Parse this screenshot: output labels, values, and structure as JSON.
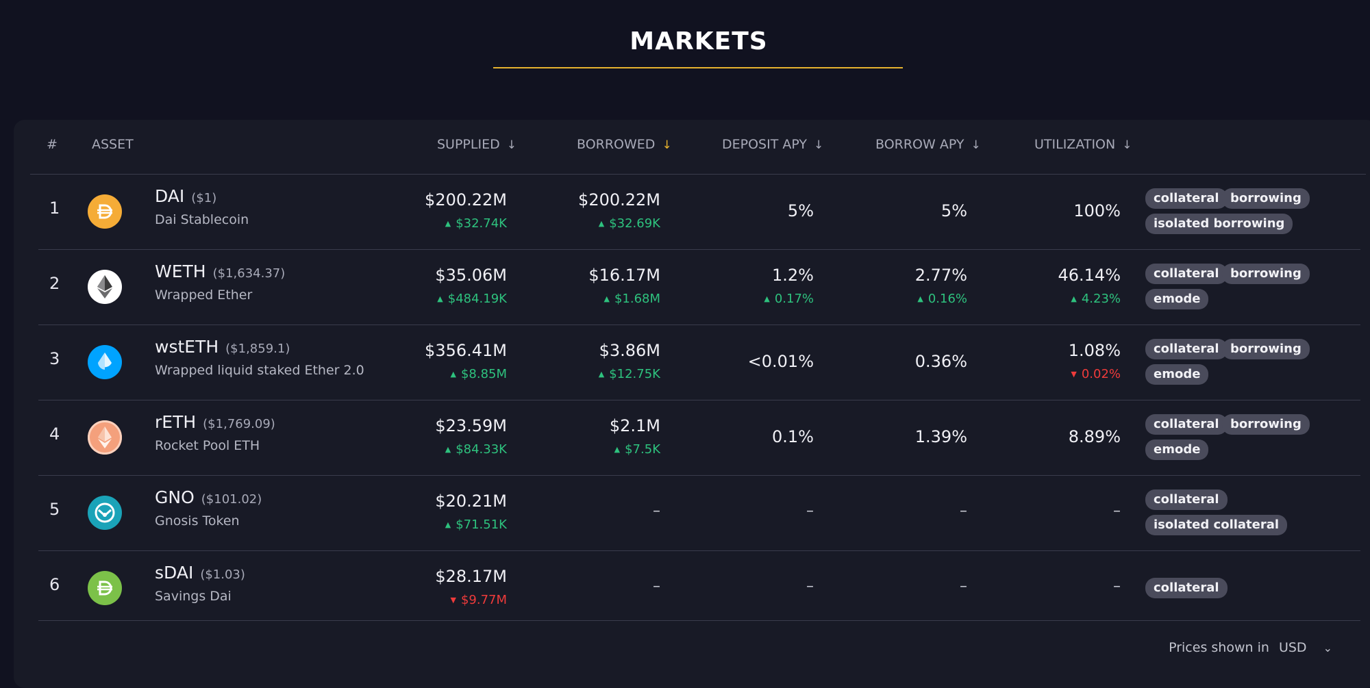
{
  "page_title": "MARKETS",
  "colors": {
    "accent": "#e7b32f",
    "up": "#2ec27e",
    "down": "#ef3b3b",
    "tag_bg": "#4a4b5b"
  },
  "columns": {
    "rank": "#",
    "asset": "ASSET",
    "supplied": "SUPPLIED",
    "borrowed": "BORROWED",
    "deposit_apy": "DEPOSIT APY",
    "borrow_apy": "BORROW APY",
    "utilization": "UTILIZATION",
    "sort_icon": "arrow-down-icon",
    "active_sort": "borrowed"
  },
  "rows": [
    {
      "rank": "1",
      "symbol": "DAI",
      "price": "($1)",
      "name": "Dai Stablecoin",
      "icon": "dai-icon",
      "supplied": "$200.22M",
      "supplied_change": "$32.74K",
      "borrowed": "$200.22M",
      "borrowed_change": "$32.69K",
      "deposit_apy": "5%",
      "borrow_apy": "5%",
      "utilization": "100%",
      "tags": [
        "collateral",
        "borrowing",
        "isolated borrowing"
      ]
    },
    {
      "rank": "2",
      "symbol": "WETH",
      "price": "($1,634.37)",
      "name": "Wrapped Ether",
      "icon": "eth-icon",
      "supplied": "$35.06M",
      "supplied_change": "$484.19K",
      "borrowed": "$16.17M",
      "borrowed_change": "$1.68M",
      "deposit_apy": "1.2%",
      "deposit_apy_change": "0.17%",
      "borrow_apy": "2.77%",
      "borrow_apy_change": "0.16%",
      "utilization": "46.14%",
      "utilization_change": "4.23%",
      "tags": [
        "collateral",
        "borrowing",
        "emode"
      ]
    },
    {
      "rank": "3",
      "symbol": "wstETH",
      "price": "($1,859.1)",
      "name": "Wrapped liquid staked Ether 2.0",
      "icon": "lido-icon",
      "supplied": "$356.41M",
      "supplied_change": "$8.85M",
      "borrowed": "$3.86M",
      "borrowed_change": "$12.75K",
      "deposit_apy": "<0.01%",
      "borrow_apy": "0.36%",
      "utilization": "1.08%",
      "utilization_change": "0.02%",
      "tags": [
        "collateral",
        "borrowing",
        "emode"
      ]
    },
    {
      "rank": "4",
      "symbol": "rETH",
      "price": "($1,769.09)",
      "name": "Rocket Pool ETH",
      "icon": "rocket-pool-icon",
      "supplied": "$23.59M",
      "supplied_change": "$84.33K",
      "borrowed": "$2.1M",
      "borrowed_change": "$7.5K",
      "deposit_apy": "0.1%",
      "borrow_apy": "1.39%",
      "utilization": "8.89%",
      "tags": [
        "collateral",
        "borrowing",
        "emode"
      ]
    },
    {
      "rank": "5",
      "symbol": "GNO",
      "price": "($101.02)",
      "name": "Gnosis Token",
      "icon": "gnosis-icon",
      "supplied": "$20.21M",
      "supplied_change": "$71.51K",
      "borrowed": "–",
      "deposit_apy": "–",
      "borrow_apy": "–",
      "utilization": "–",
      "tags": [
        "collateral",
        "isolated collateral"
      ]
    },
    {
      "rank": "6",
      "symbol": "sDAI",
      "price": "($1.03)",
      "name": "Savings Dai",
      "icon": "sdai-icon",
      "supplied": "$28.17M",
      "supplied_change": "$9.77M",
      "borrowed": "–",
      "deposit_apy": "–",
      "borrow_apy": "–",
      "utilization": "–",
      "tags": [
        "collateral"
      ]
    }
  ],
  "footer": {
    "label": "Prices shown in",
    "currency": "USD",
    "icon": "chevron-down-icon"
  }
}
